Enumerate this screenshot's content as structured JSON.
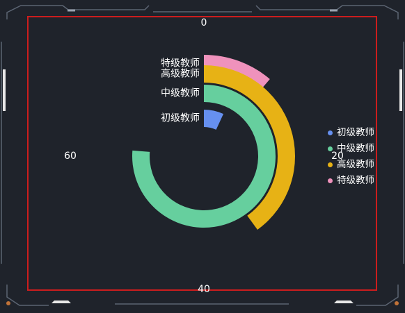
{
  "chart_data": {
    "type": "radial-bar",
    "categories": [
      "特级教师",
      "高级教师",
      "中级教师",
      "初级教师"
    ],
    "series": [
      {
        "name": "特级教师",
        "value": 9
      },
      {
        "name": "高级教师",
        "value": 32
      },
      {
        "name": "中级教师",
        "value": 61
      },
      {
        "name": "初级教师",
        "value": 5.5
      }
    ],
    "angle_axis": {
      "min": 0,
      "max": 80,
      "tick_labels": [
        "0",
        "20",
        "40",
        "60"
      ]
    },
    "legend": {
      "placement": "right",
      "items": [
        "初级教师",
        "中级教师",
        "高级教师",
        "特级教师"
      ]
    },
    "colors": {
      "特级教师": "#ef92bc",
      "高级教师": "#e7b215",
      "中级教师": "#66cf9e",
      "初级教师": "#6690f0"
    },
    "background": "#1f232b",
    "plot_border_color": "#cc1d1d",
    "frame_color": "#5c6573",
    "accent_color": "#c07238"
  }
}
